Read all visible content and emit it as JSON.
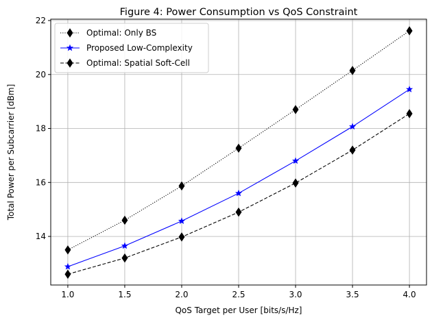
{
  "chart_data": {
    "type": "line",
    "title": "Figure 4: Power Consumption vs QoS Constraint",
    "xlabel": "QoS Target per User [bits/s/Hz]",
    "ylabel": "Total Power per Subcarrier [dBm]",
    "x": [
      1.0,
      1.5,
      2.0,
      2.5,
      3.0,
      3.5,
      4.0
    ],
    "xlim": [
      0.85,
      4.15
    ],
    "ylim": [
      12.2,
      22.05
    ],
    "xticks": [
      "1.0",
      "1.5",
      "2.0",
      "2.5",
      "3.0",
      "3.5",
      "4.0"
    ],
    "yticks": [
      "14",
      "16",
      "18",
      "20",
      "22"
    ],
    "grid": true,
    "legend_position": "top-left",
    "series": [
      {
        "name": "Optimal: Only BS",
        "values": [
          13.5,
          14.6,
          15.87,
          17.27,
          18.7,
          20.15,
          21.62
        ],
        "color": "#000000",
        "line_style": "dotted",
        "marker": "diamond"
      },
      {
        "name": "Proposed Low-Complexity",
        "values": [
          12.88,
          13.65,
          14.57,
          15.6,
          16.8,
          18.07,
          19.45
        ],
        "color": "#0000ff",
        "line_style": "solid",
        "marker": "star"
      },
      {
        "name": "Optimal: Spatial Soft-Cell",
        "values": [
          12.6,
          13.2,
          13.98,
          14.9,
          15.98,
          17.2,
          18.55
        ],
        "color": "#000000",
        "line_style": "dashed",
        "marker": "diamond"
      }
    ]
  }
}
